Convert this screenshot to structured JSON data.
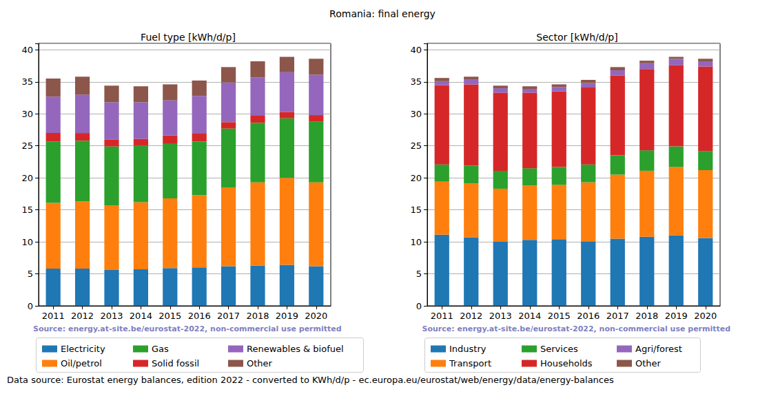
{
  "title": "Romania: final energy",
  "footnote": "Data source: Eurostat energy balances, edition 2022 - converted to KWh/d/p - ec.europa.eu/eurostat/web/energy/data/energy-balances",
  "chart_data": [
    {
      "type": "bar",
      "title": "Fuel type [kWh/d/p]",
      "annotation": "Source: energy.at-site.be/eurostat-2022, non-commercial use permitted",
      "stacked": true,
      "grid": true,
      "legend": "bottom",
      "categories": [
        "2011",
        "2012",
        "2013",
        "2014",
        "2015",
        "2016",
        "2017",
        "2018",
        "2019",
        "2020"
      ],
      "ylim": [
        0,
        41
      ],
      "yticks": [
        0,
        5,
        10,
        15,
        20,
        25,
        30,
        35,
        40
      ],
      "series": [
        {
          "name": "Electricity",
          "color": "#1f77b4",
          "values": [
            5.8,
            5.8,
            5.6,
            5.7,
            5.9,
            6.0,
            6.2,
            6.3,
            6.4,
            6.2
          ]
        },
        {
          "name": "Oil/petrol",
          "color": "#ff7f0e",
          "values": [
            10.3,
            10.5,
            10.1,
            10.5,
            10.9,
            11.3,
            12.3,
            13.0,
            13.6,
            13.1
          ]
        },
        {
          "name": "Gas",
          "color": "#2ca02c",
          "values": [
            9.6,
            9.5,
            9.2,
            8.8,
            8.5,
            8.4,
            9.2,
            9.3,
            9.3,
            9.5
          ]
        },
        {
          "name": "Solid fossil",
          "color": "#d62728",
          "values": [
            1.3,
            1.2,
            1.1,
            1.1,
            1.3,
            1.2,
            1.0,
            1.1,
            1.0,
            1.0
          ]
        },
        {
          "name": "Renewables & biofuel",
          "color": "#9467bd",
          "values": [
            5.7,
            6.0,
            5.8,
            5.7,
            5.5,
            5.9,
            6.2,
            6.0,
            6.2,
            6.3
          ]
        },
        {
          "name": "Other",
          "color": "#8c564b",
          "values": [
            2.8,
            2.8,
            2.6,
            2.5,
            2.5,
            2.4,
            2.4,
            2.5,
            2.4,
            2.5
          ]
        }
      ]
    },
    {
      "type": "bar",
      "title": "Sector [kWh/d/p]",
      "annotation": "Source: energy.at-site.be/eurostat-2022, non-commercial use permitted",
      "stacked": true,
      "grid": true,
      "legend": "bottom",
      "categories": [
        "2011",
        "2012",
        "2013",
        "2014",
        "2015",
        "2016",
        "2017",
        "2018",
        "2019",
        "2020"
      ],
      "ylim": [
        0,
        41
      ],
      "yticks": [
        0,
        5,
        10,
        15,
        20,
        25,
        30,
        35,
        40
      ],
      "series": [
        {
          "name": "Industry",
          "color": "#1f77b4",
          "values": [
            11.1,
            10.7,
            10.0,
            10.3,
            10.4,
            10.1,
            10.5,
            10.8,
            11.0,
            10.6
          ]
        },
        {
          "name": "Transport",
          "color": "#ff7f0e",
          "values": [
            8.3,
            8.4,
            8.3,
            8.5,
            8.5,
            9.2,
            10.0,
            10.3,
            10.7,
            10.6
          ]
        },
        {
          "name": "Services",
          "color": "#2ca02c",
          "values": [
            2.7,
            2.8,
            2.8,
            2.7,
            2.8,
            2.8,
            3.0,
            3.2,
            3.2,
            3.0
          ]
        },
        {
          "name": "Households",
          "color": "#d62728",
          "values": [
            12.4,
            12.7,
            12.2,
            11.8,
            11.8,
            12.0,
            12.5,
            12.7,
            12.7,
            13.2
          ]
        },
        {
          "name": "Agri/forest",
          "color": "#9467bd",
          "values": [
            0.6,
            0.8,
            0.7,
            0.6,
            0.7,
            0.7,
            0.8,
            0.9,
            1.0,
            0.8
          ]
        },
        {
          "name": "Other",
          "color": "#8c564b",
          "values": [
            0.5,
            0.4,
            0.4,
            0.4,
            0.4,
            0.5,
            0.5,
            0.4,
            0.3,
            0.4
          ]
        }
      ]
    }
  ]
}
